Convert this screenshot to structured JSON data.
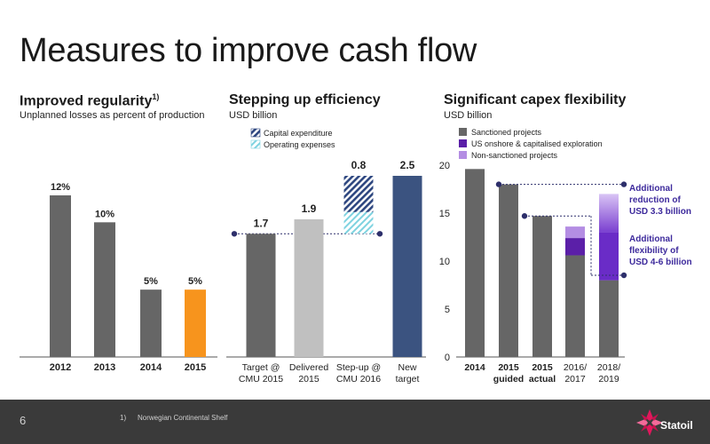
{
  "slide": {
    "title": "Measures to improve cash flow",
    "page_number": "6",
    "footnote_mark": "1)",
    "footnote": "Norwegian Continental Shelf",
    "logo_text": "Statoil"
  },
  "colors": {
    "dark_gray": "#666666",
    "orange": "#f7941d",
    "light_gray": "#c0c0c0",
    "navy": "#3b5380",
    "hatch_blue": "#2e4780",
    "hatch_cyan": "#7fd3e0",
    "purple": "#5b1fa8",
    "light_purple": "#b48de3",
    "accent_text": "#3d2a9c",
    "marker": "#2d2f6b",
    "footer_bg": "#3a3a3a"
  },
  "chart_data": [
    {
      "type": "bar",
      "title": "Improved regularity",
      "title_sup": "1)",
      "subtitle": "Unplanned losses as percent of production",
      "categories": [
        "2012",
        "2013",
        "2014",
        "2015"
      ],
      "values": [
        12,
        10,
        5,
        5
      ],
      "value_labels": [
        "12%",
        "10%",
        "5%",
        "5%"
      ],
      "ylim": [
        0,
        14
      ],
      "highlight": "2015"
    },
    {
      "type": "bar",
      "title": "Stepping up efficiency",
      "subtitle": "USD billion",
      "categories": [
        "Target @\nCMU 2015",
        "Delivered\n2015",
        "Step-up @\nCMU 2016",
        "New\ntarget"
      ],
      "bars": [
        {
          "base": 0,
          "value": 1.7,
          "label": "1.7"
        },
        {
          "base": 0,
          "value": 1.9,
          "label": "1.9"
        },
        {
          "base": 1.7,
          "value": 0.8,
          "label": "0.8",
          "segments": [
            {
              "name": "Operating expenses",
              "value": 0.3
            },
            {
              "name": "Capital expenditure",
              "value": 0.5
            }
          ]
        },
        {
          "base": 0,
          "value": 2.5,
          "label": "2.5"
        }
      ],
      "legend": [
        "Capital expenditure",
        "Operating expenses"
      ],
      "ylim": [
        0,
        2.9
      ]
    },
    {
      "type": "bar",
      "title": "Significant capex flexibility",
      "subtitle": "USD billion",
      "categories": [
        "2014",
        "2015\nguided",
        "2015\nactual",
        "2016/\n2017",
        "2018/\n2019"
      ],
      "series": [
        {
          "name": "Sanctioned projects",
          "values": [
            19.6,
            18,
            14.7,
            10.6,
            8
          ]
        },
        {
          "name": "US onshore & capitalised exploration",
          "values": [
            0,
            0,
            0,
            1.8,
            5
          ]
        },
        {
          "name": "Non-sanctioned projects",
          "values": [
            0,
            0,
            0,
            1.2,
            4
          ]
        }
      ],
      "yticks": [
        "0",
        "5",
        "10",
        "15",
        "20"
      ],
      "ylim": [
        0,
        20
      ],
      "annotations": [
        "Additional\nreduction of\nUSD 3.3 billion",
        "Additional\nflexibility of\nUSD 4-6  billion"
      ]
    }
  ]
}
